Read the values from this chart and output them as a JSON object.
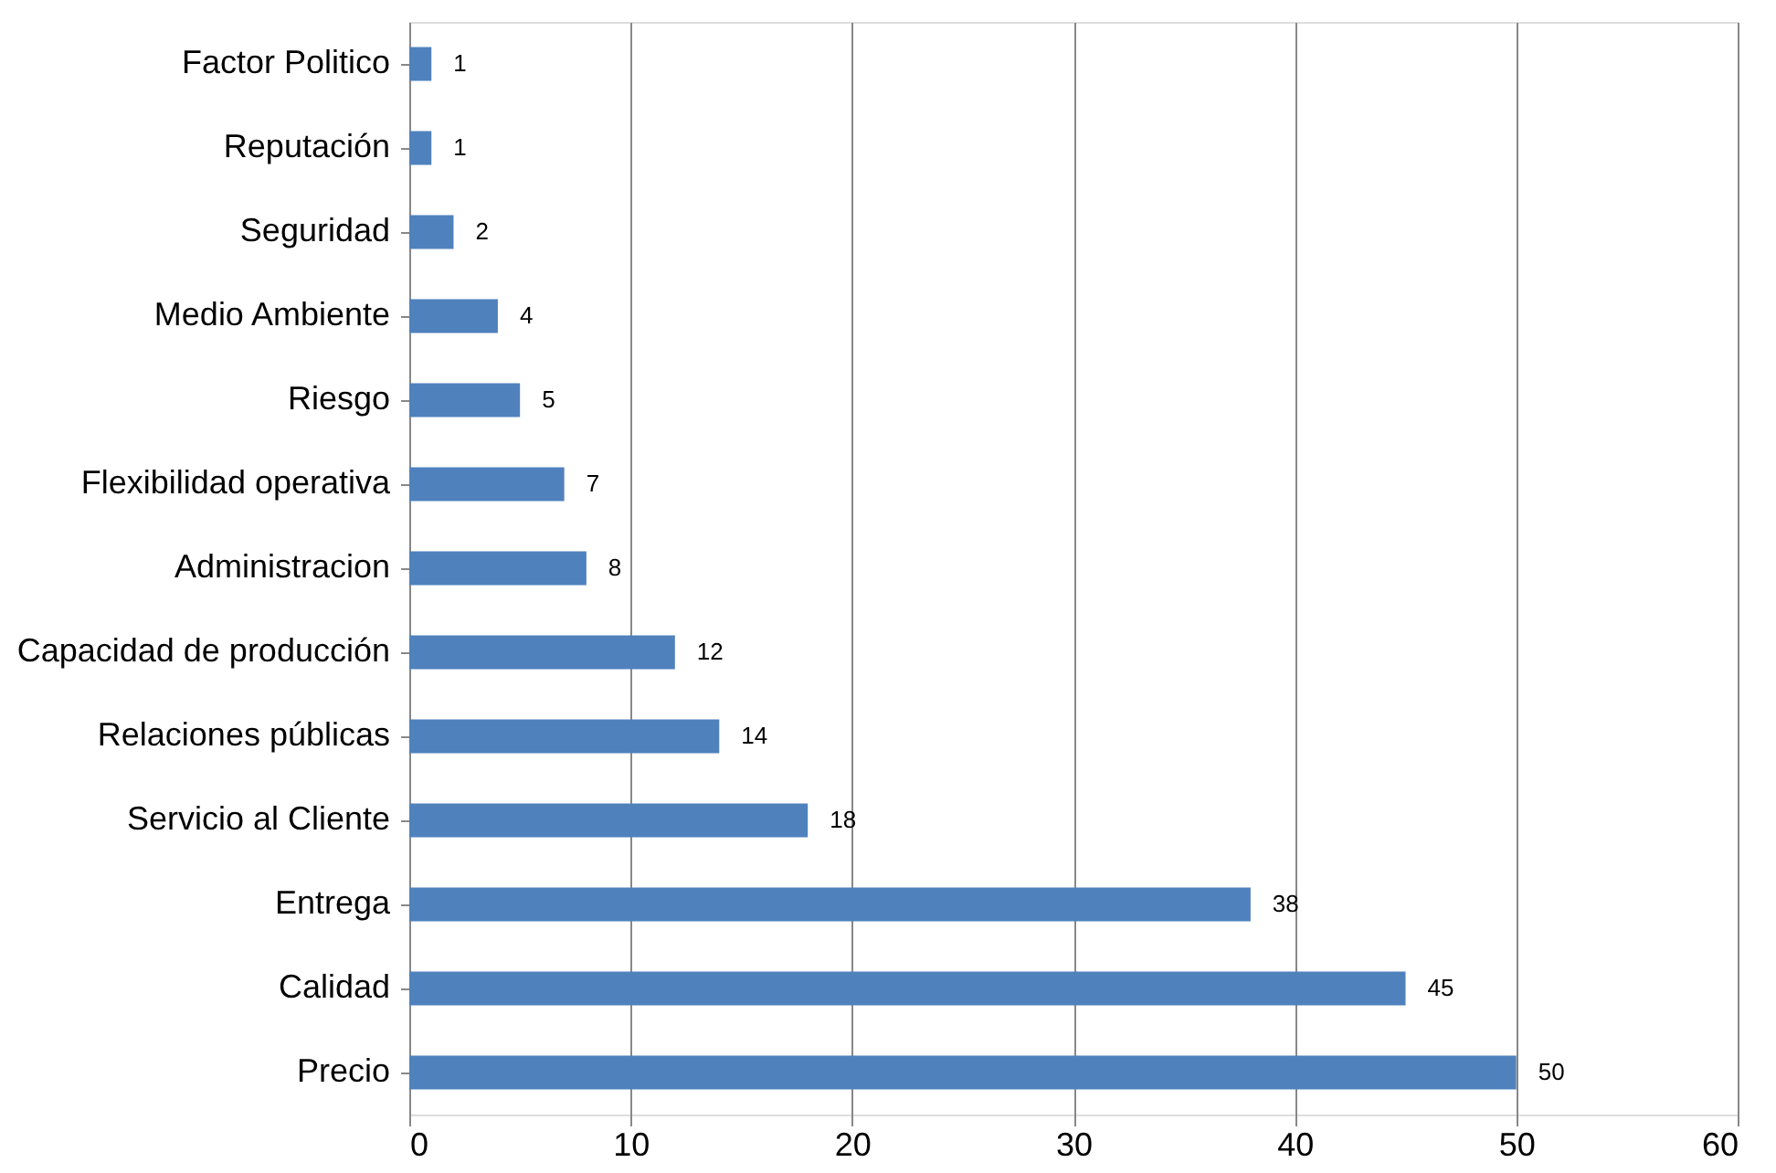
{
  "chart_data": {
    "type": "bar",
    "orientation": "horizontal",
    "categories": [
      "Factor Politico",
      "Reputación",
      "Seguridad",
      "Medio Ambiente",
      "Riesgo",
      "Flexibilidad operativa",
      "Administracion",
      "Capacidad de producción",
      "Relaciones públicas",
      "Servicio al Cliente",
      "Entrega",
      "Calidad",
      "Precio"
    ],
    "values": [
      1,
      1,
      2,
      4,
      5,
      7,
      8,
      12,
      14,
      18,
      38,
      45,
      50
    ],
    "color": "#4f81bd",
    "xlim": [
      0,
      60
    ],
    "xticks": [
      0,
      10,
      20,
      30,
      40,
      50,
      60
    ],
    "grid": "x",
    "data_labels": true
  }
}
